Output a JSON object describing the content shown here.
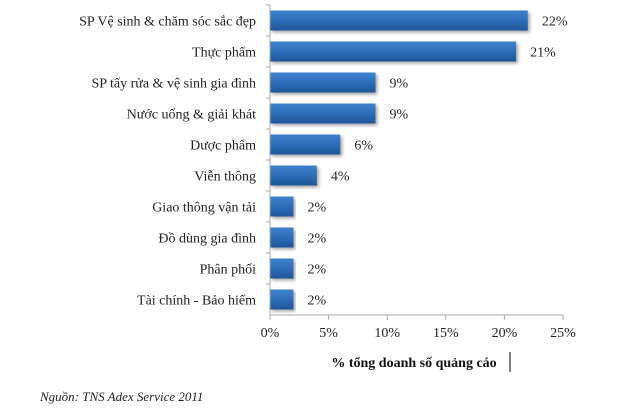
{
  "chart_data": {
    "type": "bar",
    "orientation": "horizontal",
    "categories": [
      "SP Vệ sinh & chăm sóc sắc đẹp",
      "Thực phẩm",
      "SP tẩy rửa & vệ sinh gia đình",
      "Nước uống & giải khát",
      "Dược phẩm",
      "Viễn thông",
      "Giao thông vận tải",
      "Đồ dùng gia đình",
      "Phân phối",
      "Tài chính - Bảo hiểm"
    ],
    "values": [
      22,
      21,
      9,
      9,
      6,
      4,
      2,
      2,
      2,
      2
    ],
    "data_labels": [
      "22%",
      "21%",
      "9%",
      "9%",
      "6%",
      "4%",
      "2%",
      "2%",
      "2%",
      "2%"
    ],
    "xlabel": "% tổng doanh số quảng cáo",
    "xlim": [
      0,
      25
    ],
    "xticks": [
      "0%",
      "5%",
      "10%",
      "15%",
      "20%",
      "25%"
    ],
    "grid": false,
    "bar_color": "#2E6DB8"
  },
  "source": "Nguồn: TNS Adex Service 2011"
}
